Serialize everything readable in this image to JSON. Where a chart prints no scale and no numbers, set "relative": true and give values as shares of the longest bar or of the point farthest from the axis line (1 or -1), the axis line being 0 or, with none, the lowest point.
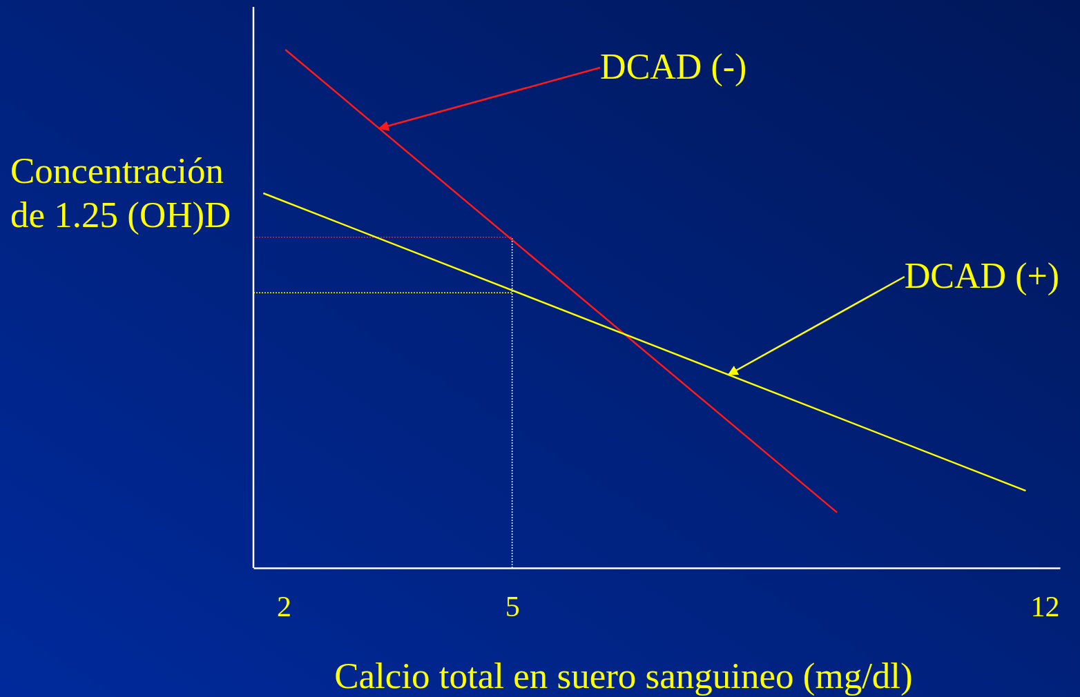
{
  "chart_data": {
    "type": "line",
    "relative": true,
    "xlabel": "Calcio total en suero sanguineo (mg/dl)",
    "ylabel": "Concentración de 1.25 (OH)D",
    "xlim": [
      1.6,
      12.2
    ],
    "xticks": [
      2,
      5,
      12
    ],
    "marker": "none",
    "line_style": "solid",
    "series": [
      {
        "color": "#ff1a1a",
        "x": [
          2.02,
          9.27
        ],
        "values": [
          1,
          0.107
        ]
      },
      {
        "color": "#ffff00",
        "x": [
          1.73,
          11.75
        ],
        "values": [
          0.723,
          0.149
        ]
      }
    ],
    "ref_lines": [
      {
        "axis": "x",
        "value": 5,
        "color": "#ffffff",
        "line_style": "dotted"
      },
      {
        "axis": "y",
        "value": 0.638,
        "color": "#ff1a1a",
        "line_style": "dotted"
      },
      {
        "axis": "y",
        "value": 0.531,
        "color": "#ffff00",
        "line_style": "dotted"
      }
    ],
    "annotations": [
      "DCAD (-)",
      "DCAD (+)"
    ]
  }
}
